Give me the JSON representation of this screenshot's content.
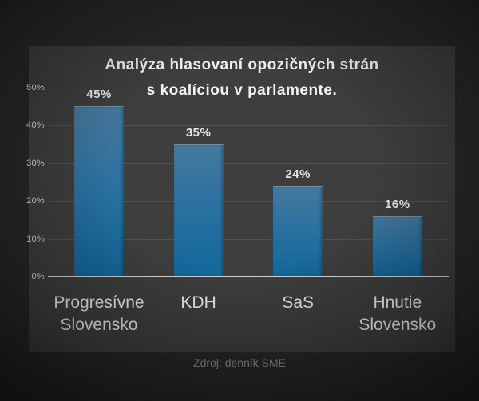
{
  "chart_data": {
    "type": "bar",
    "title": "Analýza hlasovaní opozičných strán s koalíciou v parlamente.",
    "title_lines": [
      "Analýza hlasovaní opozičných strán",
      "s koalíciou v parlamente."
    ],
    "categories": [
      "Progresívne Slovensko",
      "KDH",
      "SaS",
      "Hnutie Slovensko"
    ],
    "values": [
      45,
      35,
      24,
      16
    ],
    "value_labels": [
      "45%",
      "35%",
      "24%",
      "16%"
    ],
    "yticks": [
      0,
      10,
      20,
      30,
      40,
      50
    ],
    "ytick_labels": [
      "0%",
      "10%",
      "20%",
      "30%",
      "40%",
      "50%"
    ],
    "ylim": [
      0,
      50
    ],
    "grid": true,
    "legend": null,
    "source": "Zdroj: denník SME",
    "colors": {
      "bar_top": "#45789b",
      "bar_bottom": "#12689b",
      "panel_background": "#3e3e3e",
      "outer_background": "#282828",
      "gridline": "rgba(255,255,255,0.10)",
      "baseline": "#d6d6d6",
      "title_text": "#f2f2f2",
      "label_text": "#ececec",
      "source_text": "#8b8b8b"
    }
  }
}
